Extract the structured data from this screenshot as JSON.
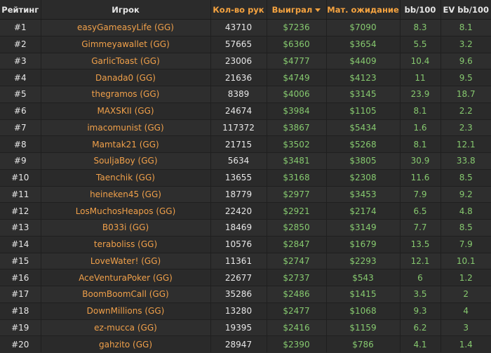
{
  "table": {
    "columns": [
      "Рейтинг",
      "Игрок",
      "Кол-во рук",
      "Выиграл",
      "Мат. ожидание",
      "bb/100",
      "EV bb/100"
    ],
    "rows": [
      [
        "#1",
        "easyGameasyLife (GG)",
        "43710",
        "$7236",
        "$7090",
        "8.3",
        "8.1"
      ],
      [
        "#2",
        "Gimmeyawallet (GG)",
        "57665",
        "$6360",
        "$3654",
        "5.5",
        "3.2"
      ],
      [
        "#3",
        "GarlicToast (GG)",
        "23006",
        "$4777",
        "$4409",
        "10.4",
        "9.6"
      ],
      [
        "#4",
        "Danada0 (GG)",
        "21636",
        "$4749",
        "$4123",
        "11",
        "9.5"
      ],
      [
        "#5",
        "thegramos (GG)",
        "8389",
        "$4006",
        "$3145",
        "23.9",
        "18.7"
      ],
      [
        "#6",
        "MAXSKII (GG)",
        "24674",
        "$3984",
        "$1105",
        "8.1",
        "2.2"
      ],
      [
        "#7",
        "imacomunist (GG)",
        "117372",
        "$3867",
        "$5434",
        "1.6",
        "2.3"
      ],
      [
        "#8",
        "Mamtak21 (GG)",
        "21715",
        "$3502",
        "$5268",
        "8.1",
        "12.1"
      ],
      [
        "#9",
        "SouljaBoy (GG)",
        "5634",
        "$3481",
        "$3805",
        "30.9",
        "33.8"
      ],
      [
        "#10",
        "Taenchik (GG)",
        "13655",
        "$3168",
        "$2308",
        "11.6",
        "8.5"
      ],
      [
        "#11",
        "heineken45 (GG)",
        "18779",
        "$2977",
        "$3453",
        "7.9",
        "9.2"
      ],
      [
        "#12",
        "LosMuchosHeapos (GG)",
        "22420",
        "$2921",
        "$2174",
        "6.5",
        "4.8"
      ],
      [
        "#13",
        "B033i (GG)",
        "18469",
        "$2850",
        "$3149",
        "7.7",
        "8.5"
      ],
      [
        "#14",
        "teraboliss (GG)",
        "10576",
        "$2847",
        "$1679",
        "13.5",
        "7.9"
      ],
      [
        "#15",
        "LoveWater! (GG)",
        "11361",
        "$2747",
        "$2293",
        "12.1",
        "10.1"
      ],
      [
        "#16",
        "AceVenturaPoker (GG)",
        "22677",
        "$2737",
        "$543",
        "6",
        "1.2"
      ],
      [
        "#17",
        "BoomBoomCall (GG)",
        "35286",
        "$2486",
        "$1415",
        "3.5",
        "2"
      ],
      [
        "#18",
        "DownMillions (GG)",
        "13280",
        "$2477",
        "$1068",
        "9.3",
        "4"
      ],
      [
        "#19",
        "ez-mucca (GG)",
        "19395",
        "$2416",
        "$1159",
        "6.2",
        "3"
      ],
      [
        "#20",
        "gahzito (GG)",
        "28947",
        "$2390",
        "$786",
        "4.1",
        "1.4"
      ]
    ]
  }
}
